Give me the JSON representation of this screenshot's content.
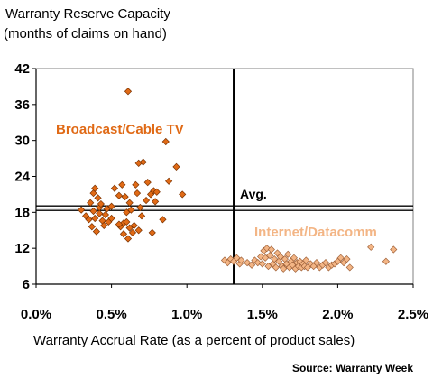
{
  "chart_data": {
    "type": "scatter",
    "ylabel_line1": "Warranty Reserve Capacity",
    "ylabel_line2": "(months of claims on hand)",
    "xlabel": "Warranty Accrual Rate (as a percent of product sales)",
    "source": "Source: Warranty Week",
    "xlim": [
      0,
      2.5
    ],
    "ylim": [
      6,
      42
    ],
    "x_ticks": [
      0,
      0.5,
      1.0,
      1.5,
      2.0,
      2.5
    ],
    "x_tick_labels": [
      "0.0%",
      "0.5%",
      "1.0%",
      "1.5%",
      "2.0%",
      "2.5%"
    ],
    "y_ticks": [
      6,
      12,
      18,
      24,
      30,
      36,
      42
    ],
    "y_tick_labels": [
      "6",
      "12",
      "18",
      "24",
      "30",
      "36",
      "42"
    ],
    "grid": false,
    "reference_lines": {
      "avg_x": 1.31,
      "avg_y": 18.7,
      "avg_label": "Avg."
    },
    "series": [
      {
        "name": "Broadcast/Cable TV",
        "color": "#e06a16",
        "points": [
          [
            0.3,
            18.4
          ],
          [
            0.33,
            17.4
          ],
          [
            0.35,
            16.8
          ],
          [
            0.36,
            19.6
          ],
          [
            0.37,
            15.6
          ],
          [
            0.38,
            21.2
          ],
          [
            0.38,
            18.2
          ],
          [
            0.39,
            22.0
          ],
          [
            0.39,
            17.0
          ],
          [
            0.4,
            14.8
          ],
          [
            0.41,
            20.4
          ],
          [
            0.42,
            18.8
          ],
          [
            0.42,
            17.8
          ],
          [
            0.43,
            19.4
          ],
          [
            0.44,
            16.6
          ],
          [
            0.45,
            15.8
          ],
          [
            0.46,
            17.6
          ],
          [
            0.47,
            18.6
          ],
          [
            0.48,
            16.4
          ],
          [
            0.5,
            17.0
          ],
          [
            0.52,
            22.0
          ],
          [
            0.55,
            20.8
          ],
          [
            0.56,
            15.6
          ],
          [
            0.57,
            22.6
          ],
          [
            0.58,
            16.2
          ],
          [
            0.58,
            14.4
          ],
          [
            0.59,
            20.6
          ],
          [
            0.6,
            18.0
          ],
          [
            0.6,
            16.4
          ],
          [
            0.61,
            13.6
          ],
          [
            0.61,
            38.2
          ],
          [
            0.62,
            19.6
          ],
          [
            0.62,
            15.4
          ],
          [
            0.63,
            18.4
          ],
          [
            0.64,
            14.6
          ],
          [
            0.65,
            15.8
          ],
          [
            0.66,
            22.6
          ],
          [
            0.67,
            21.2
          ],
          [
            0.68,
            26.2
          ],
          [
            0.69,
            18.8
          ],
          [
            0.7,
            17.4
          ],
          [
            0.71,
            26.4
          ],
          [
            0.73,
            20.0
          ],
          [
            0.74,
            23.0
          ],
          [
            0.76,
            21.0
          ],
          [
            0.77,
            14.6
          ],
          [
            0.78,
            21.6
          ],
          [
            0.79,
            19.8
          ],
          [
            0.8,
            21.4
          ],
          [
            0.84,
            16.8
          ],
          [
            0.86,
            29.8
          ],
          [
            0.88,
            23.2
          ],
          [
            0.93,
            25.6
          ],
          [
            0.97,
            21.0
          ],
          [
            0.55,
            16.0
          ],
          [
            0.68,
            15.0
          ],
          [
            0.5,
            19.0
          ]
        ]
      },
      {
        "name": "Internet/Datacomm",
        "color": "#f3b585",
        "points": [
          [
            1.25,
            10.0
          ],
          [
            1.27,
            9.6
          ],
          [
            1.29,
            10.2
          ],
          [
            1.31,
            9.8
          ],
          [
            1.33,
            10.4
          ],
          [
            1.35,
            9.4
          ],
          [
            1.36,
            10.0
          ],
          [
            1.4,
            9.6
          ],
          [
            1.43,
            9.2
          ],
          [
            1.45,
            10.0
          ],
          [
            1.47,
            9.6
          ],
          [
            1.49,
            10.6
          ],
          [
            1.5,
            9.4
          ],
          [
            1.51,
            11.6
          ],
          [
            1.52,
            10.4
          ],
          [
            1.53,
            12.0
          ],
          [
            1.54,
            9.0
          ],
          [
            1.55,
            10.8
          ],
          [
            1.56,
            11.8
          ],
          [
            1.57,
            9.4
          ],
          [
            1.58,
            10.2
          ],
          [
            1.59,
            8.8
          ],
          [
            1.6,
            11.2
          ],
          [
            1.61,
            9.8
          ],
          [
            1.62,
            10.6
          ],
          [
            1.63,
            9.0
          ],
          [
            1.64,
            8.6
          ],
          [
            1.65,
            10.2
          ],
          [
            1.66,
            9.4
          ],
          [
            1.67,
            11.0
          ],
          [
            1.68,
            8.8
          ],
          [
            1.69,
            9.8
          ],
          [
            1.7,
            9.2
          ],
          [
            1.71,
            10.4
          ],
          [
            1.72,
            8.6
          ],
          [
            1.73,
            9.6
          ],
          [
            1.74,
            9.0
          ],
          [
            1.75,
            9.8
          ],
          [
            1.76,
            8.8
          ],
          [
            1.77,
            9.4
          ],
          [
            1.78,
            9.0
          ],
          [
            1.79,
            10.0
          ],
          [
            1.8,
            8.8
          ],
          [
            1.82,
            9.4
          ],
          [
            1.84,
            9.0
          ],
          [
            1.86,
            9.6
          ],
          [
            1.88,
            8.8
          ],
          [
            1.9,
            9.2
          ],
          [
            1.92,
            9.6
          ],
          [
            1.94,
            8.8
          ],
          [
            1.96,
            9.2
          ],
          [
            1.98,
            9.4
          ],
          [
            2.0,
            9.8
          ],
          [
            2.02,
            10.4
          ],
          [
            2.04,
            9.6
          ],
          [
            2.06,
            10.2
          ],
          [
            2.08,
            8.8
          ],
          [
            2.22,
            12.2
          ],
          [
            2.32,
            9.8
          ],
          [
            2.37,
            11.8
          ]
        ]
      }
    ]
  }
}
